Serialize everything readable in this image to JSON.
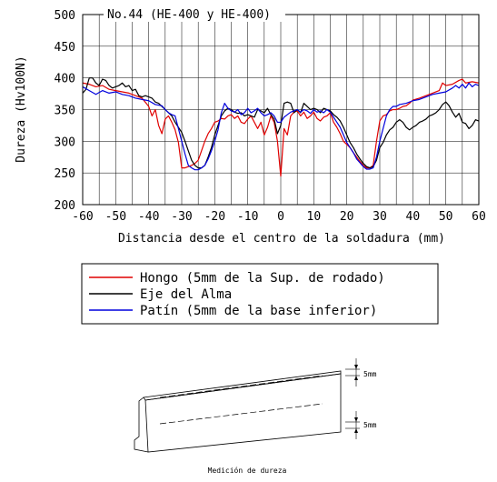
{
  "chart_data": {
    "type": "line",
    "title": "No.44 (HE-400 y HE-400)",
    "xlabel": "Distancia desde el centro de la soldadura (mm)",
    "ylabel": "Dureza (Hv100N)",
    "xlim": [
      -60,
      60
    ],
    "ylim": [
      200,
      500
    ],
    "xticks": [
      -60,
      -50,
      -40,
      -30,
      -20,
      -10,
      0,
      10,
      20,
      30,
      40,
      50,
      60
    ],
    "yticks": [
      200,
      250,
      300,
      350,
      400,
      450,
      500
    ],
    "grid": true,
    "legend_placement": "below",
    "series": [
      {
        "name": "Hongo (5mm de la Sup. de rodado)",
        "color": "#e00000",
        "points": [
          [
            -60,
            392
          ],
          [
            -58,
            390
          ],
          [
            -56,
            386
          ],
          [
            -54,
            388
          ],
          [
            -52,
            382
          ],
          [
            -50,
            380
          ],
          [
            -48,
            378
          ],
          [
            -46,
            376
          ],
          [
            -44,
            372
          ],
          [
            -42,
            368
          ],
          [
            -40,
            355
          ],
          [
            -39,
            340
          ],
          [
            -38,
            350
          ],
          [
            -37,
            325
          ],
          [
            -36,
            312
          ],
          [
            -35,
            335
          ],
          [
            -34,
            340
          ],
          [
            -33,
            330
          ],
          [
            -32,
            318
          ],
          [
            -31,
            298
          ],
          [
            -30,
            258
          ],
          [
            -29,
            258
          ],
          [
            -28,
            260
          ],
          [
            -27,
            262
          ],
          [
            -26,
            265
          ],
          [
            -25,
            270
          ],
          [
            -24,
            285
          ],
          [
            -23,
            300
          ],
          [
            -22,
            312
          ],
          [
            -21,
            320
          ],
          [
            -20,
            330
          ],
          [
            -19,
            332
          ],
          [
            -18,
            336
          ],
          [
            -17,
            335
          ],
          [
            -16,
            340
          ],
          [
            -15,
            342
          ],
          [
            -14,
            336
          ],
          [
            -13,
            340
          ],
          [
            -12,
            330
          ],
          [
            -11,
            328
          ],
          [
            -10,
            335
          ],
          [
            -9,
            340
          ],
          [
            -8,
            330
          ],
          [
            -7,
            320
          ],
          [
            -6,
            330
          ],
          [
            -5,
            310
          ],
          [
            -4,
            322
          ],
          [
            -3,
            340
          ],
          [
            -2,
            330
          ],
          [
            -1,
            300
          ],
          [
            0,
            245
          ],
          [
            1,
            320
          ],
          [
            2,
            310
          ],
          [
            3,
            340
          ],
          [
            4,
            346
          ],
          [
            5,
            348
          ],
          [
            6,
            340
          ],
          [
            7,
            346
          ],
          [
            8,
            336
          ],
          [
            9,
            340
          ],
          [
            10,
            346
          ],
          [
            11,
            336
          ],
          [
            12,
            332
          ],
          [
            13,
            338
          ],
          [
            14,
            340
          ],
          [
            15,
            345
          ],
          [
            16,
            330
          ],
          [
            17,
            322
          ],
          [
            18,
            312
          ],
          [
            19,
            300
          ],
          [
            20,
            295
          ],
          [
            21,
            290
          ],
          [
            22,
            282
          ],
          [
            23,
            275
          ],
          [
            24,
            268
          ],
          [
            25,
            262
          ],
          [
            26,
            258
          ],
          [
            27,
            258
          ],
          [
            28,
            262
          ],
          [
            29,
            300
          ],
          [
            30,
            332
          ],
          [
            31,
            340
          ],
          [
            32,
            342
          ],
          [
            33,
            348
          ],
          [
            34,
            350
          ],
          [
            35,
            350
          ],
          [
            36,
            352
          ],
          [
            37,
            355
          ],
          [
            38,
            356
          ],
          [
            39,
            360
          ],
          [
            40,
            365
          ],
          [
            42,
            368
          ],
          [
            44,
            372
          ],
          [
            46,
            376
          ],
          [
            48,
            380
          ],
          [
            49,
            392
          ],
          [
            50,
            388
          ],
          [
            52,
            390
          ],
          [
            54,
            396
          ],
          [
            55,
            398
          ],
          [
            56,
            392
          ],
          [
            58,
            394
          ],
          [
            60,
            392
          ]
        ]
      },
      {
        "name": "Eje del Alma",
        "color": "#000000",
        "points": [
          [
            -60,
            376
          ],
          [
            -59,
            382
          ],
          [
            -58,
            400
          ],
          [
            -57,
            400
          ],
          [
            -56,
            392
          ],
          [
            -55,
            388
          ],
          [
            -54,
            398
          ],
          [
            -53,
            396
          ],
          [
            -52,
            388
          ],
          [
            -51,
            384
          ],
          [
            -50,
            386
          ],
          [
            -49,
            388
          ],
          [
            -48,
            392
          ],
          [
            -47,
            386
          ],
          [
            -46,
            388
          ],
          [
            -45,
            380
          ],
          [
            -44,
            382
          ],
          [
            -43,
            372
          ],
          [
            -42,
            370
          ],
          [
            -41,
            372
          ],
          [
            -40,
            370
          ],
          [
            -39,
            368
          ],
          [
            -38,
            362
          ],
          [
            -37,
            360
          ],
          [
            -36,
            355
          ],
          [
            -35,
            350
          ],
          [
            -34,
            345
          ],
          [
            -33,
            340
          ],
          [
            -32,
            330
          ],
          [
            -31,
            322
          ],
          [
            -30,
            314
          ],
          [
            -29,
            300
          ],
          [
            -28,
            285
          ],
          [
            -27,
            270
          ],
          [
            -26,
            262
          ],
          [
            -25,
            258
          ],
          [
            -24,
            258
          ],
          [
            -23,
            262
          ],
          [
            -22,
            275
          ],
          [
            -21,
            290
          ],
          [
            -20,
            310
          ],
          [
            -19,
            325
          ],
          [
            -18,
            340
          ],
          [
            -17,
            348
          ],
          [
            -16,
            352
          ],
          [
            -15,
            350
          ],
          [
            -14,
            346
          ],
          [
            -13,
            344
          ],
          [
            -12,
            345
          ],
          [
            -11,
            340
          ],
          [
            -10,
            342
          ],
          [
            -9,
            340
          ],
          [
            -8,
            338
          ],
          [
            -7,
            350
          ],
          [
            -6,
            348
          ],
          [
            -5,
            345
          ],
          [
            -4,
            352
          ],
          [
            -3,
            342
          ],
          [
            -2,
            335
          ],
          [
            -1,
            312
          ],
          [
            0,
            325
          ],
          [
            1,
            360
          ],
          [
            2,
            362
          ],
          [
            3,
            360
          ],
          [
            4,
            345
          ],
          [
            5,
            350
          ],
          [
            6,
            345
          ],
          [
            7,
            360
          ],
          [
            8,
            355
          ],
          [
            9,
            350
          ],
          [
            10,
            352
          ],
          [
            11,
            350
          ],
          [
            12,
            345
          ],
          [
            13,
            352
          ],
          [
            14,
            350
          ],
          [
            15,
            348
          ],
          [
            16,
            342
          ],
          [
            17,
            338
          ],
          [
            18,
            332
          ],
          [
            19,
            322
          ],
          [
            20,
            310
          ],
          [
            21,
            298
          ],
          [
            22,
            290
          ],
          [
            23,
            280
          ],
          [
            24,
            272
          ],
          [
            25,
            265
          ],
          [
            26,
            260
          ],
          [
            27,
            258
          ],
          [
            28,
            260
          ],
          [
            29,
            270
          ],
          [
            30,
            290
          ],
          [
            31,
            298
          ],
          [
            32,
            310
          ],
          [
            33,
            318
          ],
          [
            34,
            322
          ],
          [
            35,
            330
          ],
          [
            36,
            334
          ],
          [
            37,
            330
          ],
          [
            38,
            322
          ],
          [
            39,
            318
          ],
          [
            40,
            322
          ],
          [
            41,
            325
          ],
          [
            42,
            330
          ],
          [
            43,
            332
          ],
          [
            44,
            335
          ],
          [
            45,
            340
          ],
          [
            46,
            342
          ],
          [
            47,
            345
          ],
          [
            48,
            350
          ],
          [
            49,
            358
          ],
          [
            50,
            362
          ],
          [
            51,
            356
          ],
          [
            52,
            346
          ],
          [
            53,
            338
          ],
          [
            54,
            344
          ],
          [
            55,
            330
          ],
          [
            56,
            328
          ],
          [
            57,
            320
          ],
          [
            58,
            325
          ],
          [
            59,
            334
          ],
          [
            60,
            332
          ]
        ]
      },
      {
        "name": "Patín (5mm de la base inferior)",
        "color": "#0000dd",
        "points": [
          [
            -60,
            386
          ],
          [
            -58,
            380
          ],
          [
            -56,
            374
          ],
          [
            -54,
            380
          ],
          [
            -52,
            376
          ],
          [
            -50,
            378
          ],
          [
            -48,
            374
          ],
          [
            -46,
            372
          ],
          [
            -44,
            368
          ],
          [
            -42,
            366
          ],
          [
            -40,
            364
          ],
          [
            -38,
            358
          ],
          [
            -36,
            356
          ],
          [
            -35,
            350
          ],
          [
            -34,
            345
          ],
          [
            -33,
            342
          ],
          [
            -32,
            340
          ],
          [
            -31,
            320
          ],
          [
            -30,
            300
          ],
          [
            -29,
            280
          ],
          [
            -28,
            262
          ],
          [
            -27,
            258
          ],
          [
            -26,
            255
          ],
          [
            -25,
            255
          ],
          [
            -24,
            258
          ],
          [
            -23,
            262
          ],
          [
            -22,
            272
          ],
          [
            -21,
            285
          ],
          [
            -20,
            300
          ],
          [
            -19,
            318
          ],
          [
            -18,
            345
          ],
          [
            -17,
            360
          ],
          [
            -16,
            352
          ],
          [
            -15,
            348
          ],
          [
            -14,
            346
          ],
          [
            -13,
            350
          ],
          [
            -12,
            342
          ],
          [
            -11,
            345
          ],
          [
            -10,
            352
          ],
          [
            -9,
            345
          ],
          [
            -8,
            348
          ],
          [
            -7,
            352
          ],
          [
            -6,
            345
          ],
          [
            -5,
            340
          ],
          [
            -4,
            342
          ],
          [
            -3,
            345
          ],
          [
            -2,
            340
          ],
          [
            -1,
            330
          ],
          [
            0,
            330
          ],
          [
            1,
            338
          ],
          [
            2,
            342
          ],
          [
            3,
            346
          ],
          [
            4,
            348
          ],
          [
            5,
            350
          ],
          [
            6,
            346
          ],
          [
            7,
            350
          ],
          [
            8,
            348
          ],
          [
            9,
            344
          ],
          [
            10,
            350
          ],
          [
            11,
            346
          ],
          [
            12,
            348
          ],
          [
            13,
            345
          ],
          [
            14,
            350
          ],
          [
            15,
            346
          ],
          [
            16,
            338
          ],
          [
            17,
            330
          ],
          [
            18,
            322
          ],
          [
            19,
            310
          ],
          [
            20,
            298
          ],
          [
            21,
            290
          ],
          [
            22,
            282
          ],
          [
            23,
            272
          ],
          [
            24,
            266
          ],
          [
            25,
            260
          ],
          [
            26,
            256
          ],
          [
            27,
            256
          ],
          [
            28,
            258
          ],
          [
            29,
            275
          ],
          [
            30,
            300
          ],
          [
            31,
            320
          ],
          [
            32,
            340
          ],
          [
            33,
            350
          ],
          [
            34,
            355
          ],
          [
            35,
            355
          ],
          [
            36,
            358
          ],
          [
            38,
            360
          ],
          [
            40,
            364
          ],
          [
            42,
            366
          ],
          [
            44,
            370
          ],
          [
            46,
            374
          ],
          [
            48,
            376
          ],
          [
            50,
            378
          ],
          [
            52,
            384
          ],
          [
            53,
            388
          ],
          [
            54,
            384
          ],
          [
            55,
            390
          ],
          [
            56,
            384
          ],
          [
            57,
            392
          ],
          [
            58,
            386
          ],
          [
            59,
            390
          ],
          [
            60,
            388
          ]
        ]
      }
    ]
  },
  "diagram": {
    "caption": "Medición de dureza",
    "dim_top": "5mm",
    "dim_bottom": "5mm"
  }
}
